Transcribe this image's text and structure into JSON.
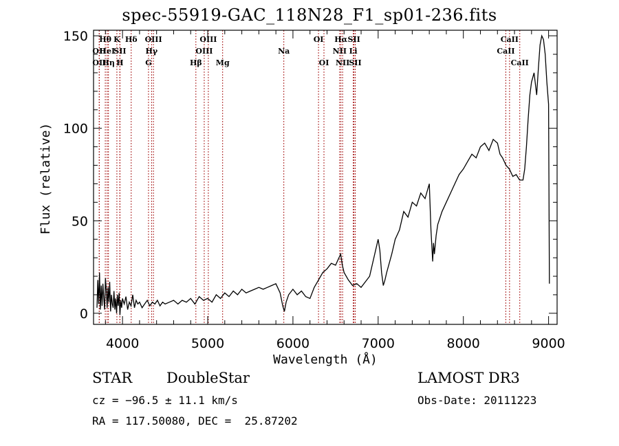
{
  "chart_data": {
    "type": "line",
    "title": "spec-55919-GAC_118N28_F1_sp01-236.fits",
    "xlabel": "Wavelength (Å)",
    "ylabel": "Flux (relative)",
    "xlim": [
      3660,
      9100
    ],
    "ylim": [
      -6,
      153
    ],
    "xticks": [
      4000,
      5000,
      6000,
      7000,
      8000,
      9000
    ],
    "yticks": [
      0,
      50,
      100,
      150
    ],
    "x_minor_step": 200,
    "y_minor_step": 10,
    "grid": false,
    "series": [
      {
        "name": "spectrum",
        "x": [
          3700,
          3710,
          3720,
          3730,
          3740,
          3750,
          3760,
          3770,
          3780,
          3790,
          3800,
          3810,
          3820,
          3830,
          3840,
          3850,
          3860,
          3870,
          3880,
          3890,
          3900,
          3910,
          3920,
          3930,
          3940,
          3950,
          3960,
          3970,
          3980,
          3990,
          4000,
          4020,
          4040,
          4060,
          4080,
          4100,
          4120,
          4140,
          4160,
          4180,
          4200,
          4230,
          4260,
          4290,
          4320,
          4350,
          4380,
          4410,
          4440,
          4470,
          4500,
          4550,
          4600,
          4650,
          4700,
          4750,
          4800,
          4850,
          4900,
          4950,
          5000,
          5050,
          5100,
          5150,
          5200,
          5250,
          5300,
          5350,
          5400,
          5450,
          5500,
          5550,
          5600,
          5650,
          5700,
          5750,
          5800,
          5850,
          5880,
          5900,
          5920,
          5950,
          6000,
          6050,
          6100,
          6150,
          6200,
          6250,
          6300,
          6350,
          6400,
          6450,
          6500,
          6540,
          6560,
          6580,
          6600,
          6650,
          6700,
          6750,
          6800,
          6850,
          6900,
          6950,
          7000,
          7020,
          7040,
          7060,
          7080,
          7100,
          7130,
          7160,
          7200,
          7250,
          7300,
          7350,
          7400,
          7450,
          7500,
          7550,
          7600,
          7620,
          7640,
          7650,
          7660,
          7680,
          7700,
          7750,
          7800,
          7850,
          7900,
          7950,
          8000,
          8050,
          8100,
          8150,
          8200,
          8250,
          8300,
          8350,
          8400,
          8430,
          8460,
          8500,
          8540,
          8580,
          8620,
          8660,
          8700,
          8720,
          8740,
          8760,
          8780,
          8800,
          8830,
          8860,
          8880,
          8900,
          8920,
          8940,
          8960,
          8980,
          9000,
          9010
        ],
        "y": [
          3,
          18,
          5,
          22,
          2,
          15,
          4,
          16,
          8,
          2,
          19,
          12,
          3,
          14,
          6,
          17,
          1,
          10,
          5,
          3,
          12,
          2,
          8,
          0,
          10,
          4,
          11,
          -1,
          7,
          3,
          8,
          5,
          9,
          2,
          6,
          4,
          10,
          3,
          7,
          5,
          6,
          3,
          5,
          7,
          4,
          6,
          5,
          7,
          4,
          6,
          5,
          6,
          7,
          5,
          7,
          6,
          8,
          5,
          9,
          7,
          8,
          6,
          10,
          8,
          11,
          9,
          12,
          10,
          13,
          11,
          12,
          13,
          14,
          13,
          14,
          15,
          16,
          11,
          4,
          1,
          6,
          10,
          13,
          10,
          12,
          9,
          8,
          14,
          18,
          22,
          24,
          27,
          26,
          30,
          32,
          26,
          22,
          18,
          15,
          16,
          14,
          17,
          20,
          30,
          40,
          34,
          22,
          15,
          18,
          22,
          27,
          32,
          40,
          45,
          55,
          52,
          60,
          58,
          65,
          62,
          70,
          45,
          28,
          38,
          32,
          42,
          48,
          55,
          60,
          65,
          70,
          75,
          78,
          82,
          86,
          84,
          90,
          92,
          88,
          94,
          92,
          86,
          84,
          80,
          78,
          74,
          75,
          72,
          72,
          78,
          90,
          105,
          118,
          125,
          130,
          118,
          132,
          145,
          150,
          148,
          140,
          125,
          113,
          16
        ]
      }
    ],
    "line_identifications": [
      {
        "label": "OII",
        "wavelength": 3727,
        "row": 2
      },
      {
        "label": "OII",
        "wavelength": 3727,
        "row": 3
      },
      {
        "label": "Hθ",
        "wavelength": 3798,
        "row": 1
      },
      {
        "label": "HeI",
        "wavelength": 3820,
        "row": 2
      },
      {
        "label": "Hη",
        "wavelength": 3835,
        "row": 3
      },
      {
        "label": "K",
        "wavelength": 3934,
        "row": 1
      },
      {
        "label": "SII",
        "wavelength": 3970,
        "row": 2
      },
      {
        "label": "H",
        "wavelength": 3969,
        "row": 3
      },
      {
        "label": "Hδ",
        "wavelength": 4102,
        "row": 1
      },
      {
        "label": "OIII",
        "wavelength": 4363,
        "row": 1
      },
      {
        "label": "Hγ",
        "wavelength": 4341,
        "row": 2
      },
      {
        "label": "G",
        "wavelength": 4305,
        "row": 3
      },
      {
        "label": "Hβ",
        "wavelength": 4861,
        "row": 3
      },
      {
        "label": "OIII",
        "wavelength": 4959,
        "row": 2
      },
      {
        "label": "OIII",
        "wavelength": 5007,
        "row": 1
      },
      {
        "label": "Mg",
        "wavelength": 5175,
        "row": 3
      },
      {
        "label": "Na",
        "wavelength": 5893,
        "row": 2
      },
      {
        "label": "OI",
        "wavelength": 6300,
        "row": 1
      },
      {
        "label": "OI",
        "wavelength": 6364,
        "row": 3
      },
      {
        "label": "NII",
        "wavelength": 6548,
        "row": 2
      },
      {
        "label": "Hα",
        "wavelength": 6563,
        "row": 1
      },
      {
        "label": "NII",
        "wavelength": 6583,
        "row": 3
      },
      {
        "label": "Li",
        "wavelength": 6708,
        "row": 2
      },
      {
        "label": "SII",
        "wavelength": 6716,
        "row": 1
      },
      {
        "label": "SII",
        "wavelength": 6731,
        "row": 3
      },
      {
        "label": "CaII",
        "wavelength": 8498,
        "row": 2
      },
      {
        "label": "CaII",
        "wavelength": 8542,
        "row": 1
      },
      {
        "label": "CaII",
        "wavelength": 8662,
        "row": 3
      }
    ],
    "line_color": "#000000",
    "marker_color": "#aa1f1f"
  },
  "info": {
    "object_class": "STAR",
    "subclass": "DoubleStar",
    "survey": "LAMOST DR3",
    "redshift": "cz = −96.5 ± 11.1 km/s",
    "obs_date": "Obs-Date: 20111223",
    "coords": "RA = 117.50080, DEC =  25.87202"
  }
}
